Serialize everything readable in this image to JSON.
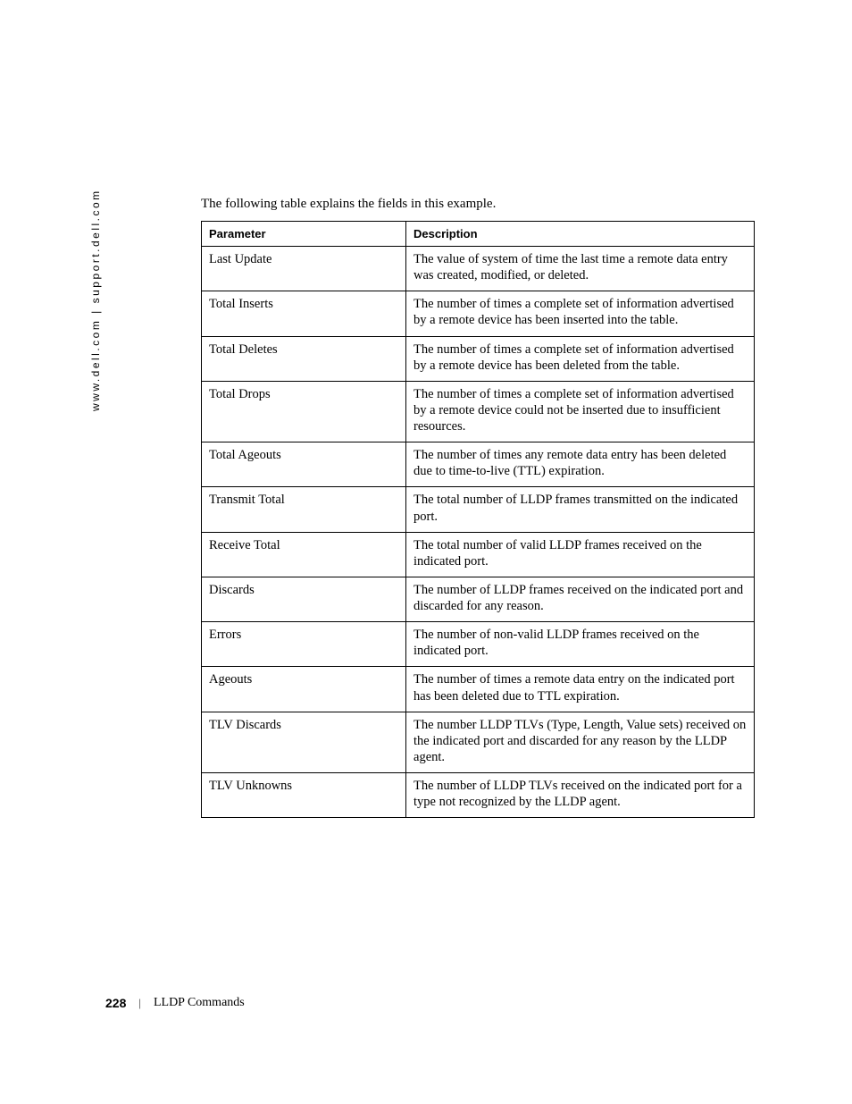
{
  "side_label": "www.dell.com | support.dell.com",
  "intro_text": "The following table explains the fields in this example.",
  "table": {
    "columns": [
      "Parameter",
      "Description"
    ],
    "rows": [
      [
        "Last Update",
        "The value of system of time the last time a remote data entry was created, modified, or deleted."
      ],
      [
        "Total Inserts",
        "The number of times a complete set of information advertised by a remote device has been inserted into the table."
      ],
      [
        "Total Deletes",
        "The number of times a complete set of information advertised by a remote device has been deleted from the table."
      ],
      [
        "Total Drops",
        "The number of times a complete set of information advertised by a remote device could not be inserted due to insufficient resources."
      ],
      [
        "Total Ageouts",
        "The number of times any remote data entry has been deleted due to time-to-live (TTL) expiration."
      ],
      [
        "Transmit Total",
        "The total number of LLDP frames transmitted on the indicated port."
      ],
      [
        "Receive Total",
        "The total number of valid LLDP frames received on the indicated port."
      ],
      [
        "Discards",
        "The number of LLDP frames received on the indicated port and discarded for any reason."
      ],
      [
        "Errors",
        "The number of non-valid LLDP frames received on the indicated port."
      ],
      [
        "Ageouts",
        "The number of times a remote data entry on the indicated port has been deleted due to TTL expiration."
      ],
      [
        "TLV Discards",
        "The number LLDP TLVs (Type, Length, Value sets) received on the indicated port and discarded for any reason by the LLDP agent."
      ],
      [
        "TLV Unknowns",
        "The number of LLDP TLVs received on the indicated port for a type not recognized by the LLDP agent."
      ]
    ]
  },
  "footer": {
    "page_number": "228",
    "divider": "|",
    "section_title": "LLDP Commands"
  }
}
